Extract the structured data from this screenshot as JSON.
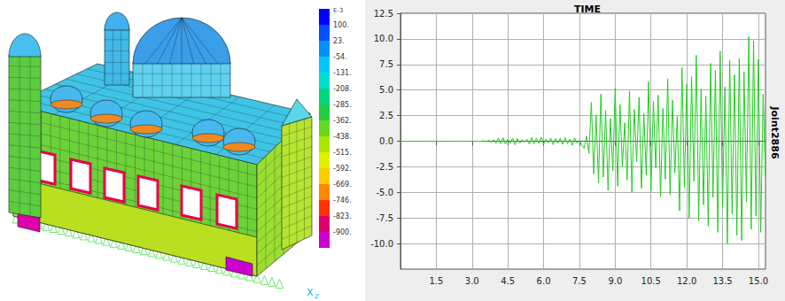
{
  "model": {
    "colorbar": {
      "title": "E-3",
      "ticks": [
        {
          "value": 100,
          "label": "100."
        },
        {
          "value": 23,
          "label": "23."
        },
        {
          "value": -54,
          "label": "-54."
        },
        {
          "value": -131,
          "label": "-131."
        },
        {
          "value": -208,
          "label": "-208."
        },
        {
          "value": -285,
          "label": "-285."
        },
        {
          "value": -362,
          "label": "-362."
        },
        {
          "value": -438,
          "label": "-438."
        },
        {
          "value": -515,
          "label": "-515."
        },
        {
          "value": -592,
          "label": "-592."
        },
        {
          "value": -669,
          "label": "-669."
        },
        {
          "value": -746,
          "label": "-746."
        },
        {
          "value": -823,
          "label": "-823."
        },
        {
          "value": -900,
          "label": "-900."
        }
      ],
      "colors": [
        "#0000ff",
        "#0050ff",
        "#0090ff",
        "#00c8ff",
        "#00e0d0",
        "#00d880",
        "#20cc40",
        "#66d820",
        "#aae600",
        "#e0ee00",
        "#ffcc00",
        "#ff8800",
        "#ff3300",
        "#e00070",
        "#cc00cc"
      ]
    },
    "axis_labels": [
      "X",
      "Z"
    ]
  },
  "chart_data": {
    "type": "line",
    "title": "TIME",
    "ylabel": "Joint2886",
    "color": "#22cc22",
    "grid": true,
    "x": [
      0,
      0.1,
      0.2,
      0.3,
      0.4,
      0.5,
      0.6,
      0.7,
      0.8,
      0.9,
      1,
      1.1,
      1.2,
      1.3,
      1.4,
      1.5,
      1.6,
      1.7,
      1.8,
      1.9,
      2,
      2.1,
      2.2,
      2.3,
      2.4,
      2.5,
      2.6,
      2.7,
      2.8,
      2.9,
      3,
      3.1,
      3.2,
      3.3,
      3.4,
      3.5,
      3.6,
      3.7,
      3.8,
      3.9,
      4,
      4.1,
      4.2,
      4.3,
      4.4,
      4.5,
      4.6,
      4.7,
      4.8,
      4.9,
      5,
      5.1,
      5.2,
      5.3,
      5.4,
      5.5,
      5.6,
      5.7,
      5.8,
      5.9,
      6,
      6.1,
      6.2,
      6.3,
      6.4,
      6.5,
      6.6,
      6.7,
      6.8,
      6.9,
      7,
      7.1,
      7.2,
      7.3,
      7.4,
      7.5,
      7.6,
      7.7,
      7.8,
      7.9,
      8,
      8.1,
      8.2,
      8.3,
      8.4,
      8.5,
      8.6,
      8.7,
      8.8,
      8.9,
      9,
      9.1,
      9.2,
      9.3,
      9.4,
      9.5,
      9.6,
      9.7,
      9.8,
      9.9,
      10,
      10.1,
      10.2,
      10.3,
      10.4,
      10.5,
      10.6,
      10.7,
      10.8,
      10.9,
      11,
      11.1,
      11.2,
      11.3,
      11.4,
      11.5,
      11.6,
      11.7,
      11.8,
      11.9,
      12,
      12.1,
      12.2,
      12.3,
      12.4,
      12.5,
      12.6,
      12.7,
      12.8,
      12.9,
      13,
      13.1,
      13.2,
      13.3,
      13.4,
      13.5,
      13.6,
      13.7,
      13.8,
      13.9,
      14,
      14.1,
      14.2,
      14.3,
      14.4,
      14.5,
      14.6,
      14.7,
      14.8,
      14.9,
      15,
      15.1,
      15.2,
      15.3
    ],
    "values": [
      0,
      0,
      0,
      0,
      0,
      0,
      0,
      0,
      0,
      0,
      0,
      0,
      0,
      0,
      0,
      0,
      0,
      0,
      0,
      0,
      0,
      0,
      0,
      0,
      0,
      0,
      0,
      0,
      0,
      0,
      0,
      0,
      0,
      0,
      0,
      0.05,
      -0.05,
      0.1,
      -0.1,
      0.15,
      -0.2,
      0.3,
      -0.25,
      0.35,
      -0.3,
      0.2,
      -0.2,
      0.3,
      -0.35,
      0.25,
      -0.2,
      0.15,
      -0.1,
      0.2,
      -0.3,
      0.35,
      -0.25,
      0.3,
      -0.2,
      0.4,
      -0.3,
      0.2,
      -0.15,
      0.3,
      -0.35,
      0.25,
      -0.2,
      0.3,
      -0.3,
      0.35,
      -0.25,
      0.2,
      -0.4,
      0.3,
      -0.2,
      0.1,
      -0.4,
      -0.7,
      0.5,
      -1.2,
      3.8,
      -3.2,
      2.5,
      -4.1,
      4.6,
      -3.5,
      3.0,
      -4.8,
      2.2,
      -2.9,
      5.2,
      -4.4,
      3.6,
      -2.5,
      1.8,
      -3.8,
      4.9,
      -5.0,
      3.1,
      -2.0,
      4.3,
      -4.6,
      2.7,
      -3.3,
      5.8,
      -4.9,
      3.9,
      -2.6,
      4.5,
      -5.4,
      3.2,
      -3.7,
      6.1,
      -5.2,
      4.0,
      -3.1,
      2.4,
      -6.8,
      7.2,
      -4.5,
      5.6,
      -7.5,
      6.3,
      -3.9,
      8.4,
      -7.8,
      5.1,
      -6.2,
      4.4,
      -8.3,
      7.6,
      -5.5,
      6.9,
      -8.9,
      8.8,
      -6.4,
      5.3,
      -10.0,
      7.9,
      -7.1,
      6.5,
      -9.2,
      8.1,
      -9.7,
      6.8,
      -5.9,
      10.2,
      -8.6,
      9.8,
      -7.3,
      8.0,
      -8.9,
      4.6,
      -3.4
    ],
    "xlim": [
      0,
      15.3
    ],
    "xticks": [
      1.5,
      {
        "value": 3,
        "label": "3.0"
      },
      4.5,
      {
        "value": 6,
        "label": "6.0"
      },
      7.5,
      {
        "value": 9,
        "label": "9.0"
      },
      10.5,
      {
        "value": 12,
        "label": "12.0"
      },
      13.5,
      {
        "value": 15,
        "label": "15.0"
      }
    ],
    "ylim": [
      -12.5,
      12.5
    ],
    "yticks": [
      {
        "value": -10,
        "label": "-10.0"
      },
      -7.5,
      {
        "value": -5,
        "label": "-5.0"
      },
      -2.5,
      {
        "value": 0,
        "label": "0.0"
      },
      2.5,
      {
        "value": 5,
        "label": "5.0"
      },
      7.5,
      {
        "value": 10,
        "label": "10.0"
      },
      12.5
    ]
  }
}
